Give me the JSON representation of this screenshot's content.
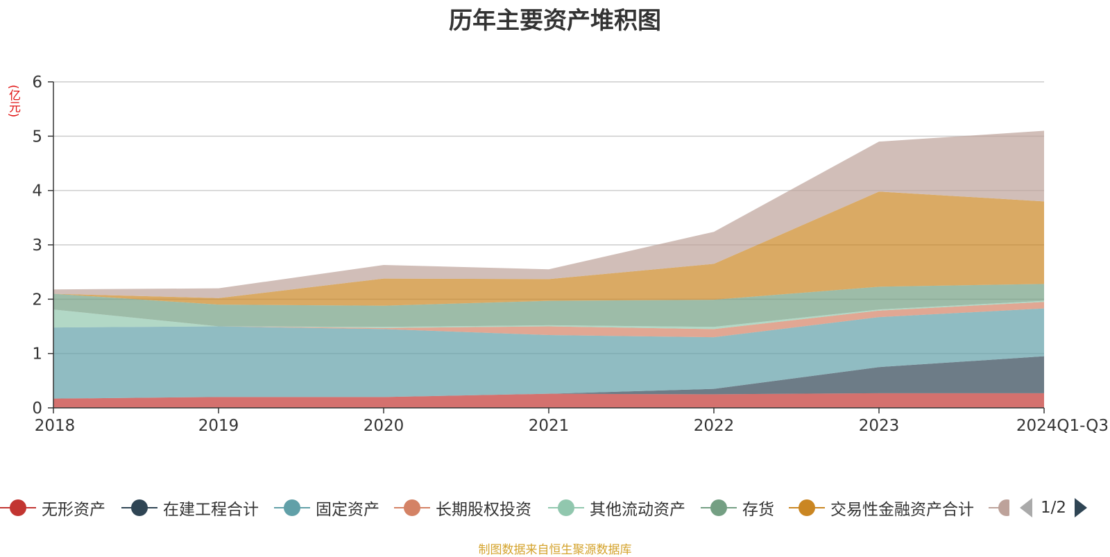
{
  "chart_data": {
    "type": "area",
    "stacked": true,
    "title": "历年主要资产堆积图",
    "ylabel": "(亿元)",
    "xlabel": "",
    "ylim": [
      0,
      6
    ],
    "yticks": [
      "0",
      "1",
      "2",
      "3",
      "4",
      "5",
      "6"
    ],
    "categories": [
      "2018",
      "2019",
      "2020",
      "2021",
      "2022",
      "2023",
      "2024Q1-Q3"
    ],
    "series": [
      {
        "name": "无形资产",
        "color": "#c23531",
        "values": [
          0.17,
          0.2,
          0.2,
          0.26,
          0.25,
          0.27,
          0.27
        ]
      },
      {
        "name": "在建工程合计",
        "color": "#2f4554",
        "values": [
          0.0,
          0.0,
          0.0,
          0.0,
          0.1,
          0.48,
          0.68
        ]
      },
      {
        "name": "固定资产",
        "color": "#61a0a8",
        "values": [
          1.31,
          1.3,
          1.25,
          1.08,
          0.95,
          0.92,
          0.88
        ]
      },
      {
        "name": "长期股权投资",
        "color": "#d48265",
        "values": [
          0.0,
          0.0,
          0.02,
          0.16,
          0.15,
          0.12,
          0.12
        ]
      },
      {
        "name": "其他流动资产",
        "color": "#91c7ae",
        "values": [
          0.33,
          0.0,
          0.02,
          0.02,
          0.04,
          0.02,
          0.02
        ]
      },
      {
        "name": "存货",
        "color": "#749f83",
        "values": [
          0.29,
          0.4,
          0.39,
          0.45,
          0.5,
          0.42,
          0.31
        ]
      },
      {
        "name": "交易性金融资产合计",
        "color": "#ca8622",
        "values": [
          0.0,
          0.12,
          0.5,
          0.4,
          0.66,
          1.75,
          1.52
        ]
      },
      {
        "name": "",
        "color": "#bda29a",
        "values": [
          0.08,
          0.18,
          0.25,
          0.18,
          0.59,
          0.92,
          1.3
        ]
      }
    ],
    "grid": true,
    "legend_position": "bottom",
    "legend_page": "1/2",
    "source": "制图数据来自恒生聚源数据库"
  }
}
